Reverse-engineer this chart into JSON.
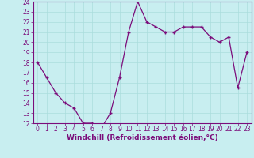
{
  "x": [
    0,
    1,
    2,
    3,
    4,
    5,
    6,
    7,
    8,
    9,
    10,
    11,
    12,
    13,
    14,
    15,
    16,
    17,
    18,
    19,
    20,
    21,
    22,
    23
  ],
  "y": [
    18,
    16.5,
    15,
    14,
    13.5,
    12,
    12,
    11.5,
    13,
    16.5,
    21,
    24,
    22,
    21.5,
    21,
    21,
    21.5,
    21.5,
    21.5,
    20.5,
    20,
    20.5,
    15.5,
    19
  ],
  "line_color": "#7B0D7B",
  "marker": "+",
  "bg_color": "#C8EEF0",
  "grid_color": "#AADDDD",
  "xlabel": "Windchill (Refroidissement éolien,°C)",
  "ylim": [
    12,
    24
  ],
  "xlim_min": -0.5,
  "xlim_max": 23.5,
  "yticks": [
    12,
    13,
    14,
    15,
    16,
    17,
    18,
    19,
    20,
    21,
    22,
    23,
    24
  ],
  "xticks": [
    0,
    1,
    2,
    3,
    4,
    5,
    6,
    7,
    8,
    9,
    10,
    11,
    12,
    13,
    14,
    15,
    16,
    17,
    18,
    19,
    20,
    21,
    22,
    23
  ],
  "xlabel_color": "#7B0D7B",
  "tick_color": "#7B0D7B",
  "tick_fontsize": 5.5,
  "xlabel_fontsize": 6.5,
  "marker_size": 3.5,
  "line_width": 0.9,
  "spine_color": "#7B0D7B"
}
